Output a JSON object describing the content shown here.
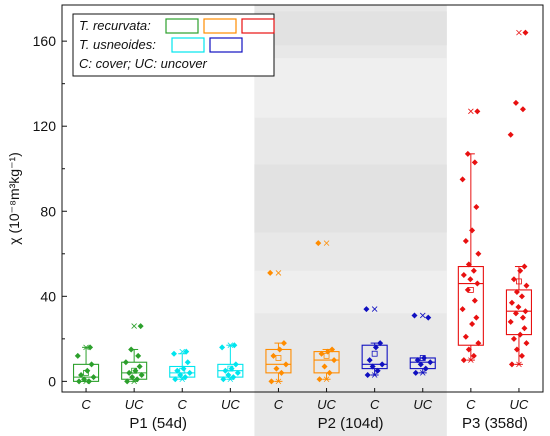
{
  "chart_data": {
    "type": "box",
    "ylabel": "χ (10⁻⁸m³kg⁻¹)",
    "ylim": [
      -5,
      177
    ],
    "yticks": [
      0,
      40,
      80,
      120,
      160
    ],
    "grid": false,
    "legend": {
      "placement": "top-left",
      "entries": [
        {
          "label": "T. recurvata:",
          "italic": true,
          "colors": [
            "#2ca02c",
            "#ff8c00",
            "#e81010"
          ]
        },
        {
          "label": "T. usneoides:",
          "italic": true,
          "colors": [
            "#00e5ee",
            "#1010c0"
          ]
        },
        {
          "label": "C: cover; UC: uncover",
          "italic": true,
          "colors": []
        }
      ]
    },
    "groups": [
      {
        "label": "P1 (54d)",
        "shaded": false
      },
      {
        "label": "P2 (104d)",
        "shaded": true
      },
      {
        "label": "P3 (358d)",
        "shaded": false
      }
    ],
    "series": [
      {
        "group": 0,
        "label": "C",
        "color": "#2ca02c",
        "q1": 0,
        "median": 2,
        "q3": 8,
        "mean": 4,
        "whisker_low": 0,
        "whisker_high": 16,
        "max": 16,
        "min": 0,
        "points": [
          0,
          0,
          1,
          2,
          3,
          5,
          8,
          12,
          16
        ]
      },
      {
        "group": 0,
        "label": "UC",
        "color": "#2ca02c",
        "q1": 1,
        "median": 4,
        "q3": 9,
        "mean": 5,
        "whisker_low": 0,
        "whisker_high": 15,
        "max": 26,
        "min": 0,
        "points": [
          0,
          1,
          2,
          3,
          4,
          5,
          7,
          9,
          12,
          15,
          26
        ]
      },
      {
        "group": 0,
        "label": "C",
        "color": "#00e5ee",
        "q1": 2,
        "median": 4,
        "q3": 7,
        "mean": 5,
        "whisker_low": 1,
        "whisker_high": 13,
        "max": 14,
        "min": 1,
        "points": [
          1,
          2,
          3,
          4,
          5,
          6,
          9,
          13,
          14
        ]
      },
      {
        "group": 0,
        "label": "UC",
        "color": "#00e5ee",
        "q1": 2,
        "median": 5,
        "q3": 8,
        "mean": 6,
        "whisker_low": 1,
        "whisker_high": 17,
        "max": 17,
        "min": 1,
        "points": [
          1,
          2,
          3,
          4,
          5,
          6,
          8,
          16,
          17
        ]
      },
      {
        "group": 1,
        "label": "C",
        "color": "#ff8c00",
        "q1": 4,
        "median": 8,
        "q3": 15,
        "mean": 11,
        "whisker_low": 0,
        "whisker_high": 18,
        "max": 51,
        "min": 0,
        "points": [
          0,
          4,
          6,
          8,
          12,
          15,
          18,
          51
        ]
      },
      {
        "group": 1,
        "label": "UC",
        "color": "#ff8c00",
        "q1": 4,
        "median": 10,
        "q3": 14,
        "mean": 12,
        "whisker_low": 1,
        "whisker_high": 15,
        "max": 65,
        "min": 1,
        "points": [
          1,
          4,
          7,
          10,
          13,
          14,
          15,
          65
        ]
      },
      {
        "group": 1,
        "label": "C",
        "color": "#1010c0",
        "q1": 6,
        "median": 8,
        "q3": 17,
        "mean": 13,
        "whisker_low": 3,
        "whisker_high": 18,
        "max": 34,
        "min": 3,
        "points": [
          3,
          5,
          7,
          8,
          10,
          16,
          18,
          34
        ]
      },
      {
        "group": 1,
        "label": "UC",
        "color": "#1010c0",
        "q1": 6,
        "median": 9,
        "q3": 11,
        "mean": 11,
        "whisker_low": 4,
        "whisker_high": 11,
        "max": 31,
        "min": 4,
        "points": [
          4,
          6,
          8,
          9,
          10,
          11,
          30,
          31
        ]
      },
      {
        "group": 2,
        "label": "C",
        "color": "#e81010",
        "q1": 17,
        "median": 46,
        "q3": 54,
        "mean": 43,
        "whisker_low": 10,
        "whisker_high": 107,
        "max": 127,
        "min": 10,
        "points": [
          10,
          12,
          15,
          18,
          21,
          27,
          30,
          34,
          38,
          43,
          46,
          48,
          50,
          52,
          55,
          60,
          66,
          71,
          82,
          95,
          103,
          107,
          127
        ]
      },
      {
        "group": 2,
        "label": "UC",
        "color": "#e81010",
        "q1": 22,
        "median": 33,
        "q3": 43,
        "mean": 47,
        "whisker_low": 8,
        "whisker_high": 54,
        "max": 164,
        "min": 8,
        "points": [
          8,
          12,
          15,
          18,
          20,
          22,
          25,
          28,
          30,
          32,
          33,
          35,
          37,
          40,
          42,
          45,
          48,
          52,
          54,
          116,
          128,
          131,
          164
        ]
      }
    ]
  }
}
